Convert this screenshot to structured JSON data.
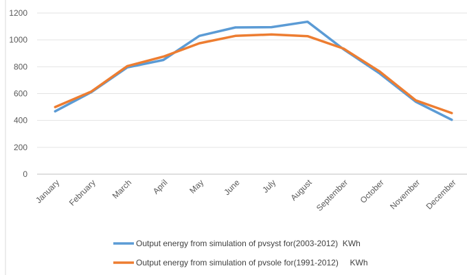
{
  "chart_data": {
    "type": "line",
    "categories": [
      "January",
      "February",
      "March",
      "April",
      "May",
      "June",
      "July",
      "August",
      "September",
      "October",
      "November",
      "December"
    ],
    "series": [
      {
        "name": "Output energy from simulation of pvsyst for(2003-2012)  KWh",
        "color": "#5b9bd5",
        "values": [
          468,
          610,
          795,
          850,
          1030,
          1093,
          1095,
          1135,
          930,
          750,
          540,
          405
        ]
      },
      {
        "name": "Output energy from simulation of pvsole for(1991-2012)     KWh",
        "color": "#ed7d31",
        "values": [
          500,
          615,
          805,
          875,
          975,
          1030,
          1040,
          1028,
          935,
          765,
          550,
          455
        ]
      }
    ],
    "ylim": [
      0,
      1200
    ],
    "yticks": [
      0,
      200,
      400,
      600,
      800,
      1000,
      1200
    ],
    "grid": true,
    "legend": "bottom"
  }
}
